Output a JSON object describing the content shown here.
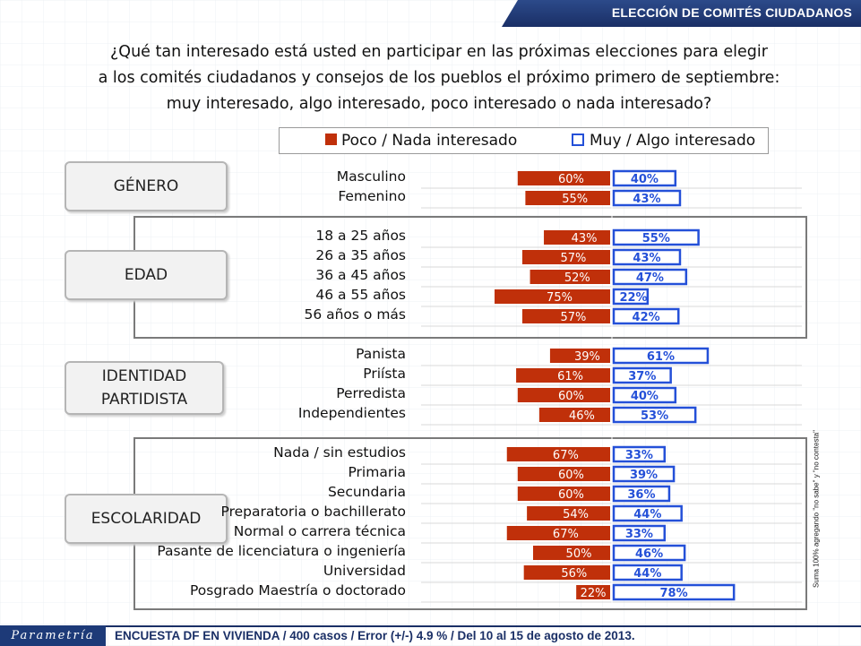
{
  "header": {
    "title": "ELECCIÓN DE COMITÉS CIUDADANOS"
  },
  "question": {
    "line1": "¿Qué tan interesado está usted en participar en las próximas elecciones para elegir",
    "line2": "a los comités ciudadanos y consejos de los pueblos el próximo primero de septiembre:",
    "line3": "muy interesado, algo interesado, poco interesado o nada interesado?"
  },
  "colors": {
    "negative": "#c0300a",
    "positive": "#2450d8",
    "header": "#1a2f66"
  },
  "chart_data": {
    "type": "bar",
    "orientation": "diverging-horizontal",
    "series": [
      {
        "name": "Poco / Nada interesado",
        "color": "#c0300a"
      },
      {
        "name": "Muy / Algo interesado",
        "color": "#2450d8"
      }
    ],
    "groups": [
      {
        "name": "GÉNERO",
        "rows": [
          {
            "label": "Masculino",
            "negative": 60,
            "positive": 40
          },
          {
            "label": "Femenino",
            "negative": 55,
            "positive": 43
          }
        ]
      },
      {
        "name": "EDAD",
        "rows": [
          {
            "label": "18 a 25 años",
            "negative": 43,
            "positive": 55
          },
          {
            "label": "26 a 35 años",
            "negative": 57,
            "positive": 43
          },
          {
            "label": "36 a 45 años",
            "negative": 52,
            "positive": 47
          },
          {
            "label": "46 a 55 años",
            "negative": 75,
            "positive": 22
          },
          {
            "label": "56 años o más",
            "negative": 57,
            "positive": 42
          }
        ]
      },
      {
        "name": "IDENTIDAD PARTIDISTA",
        "rows": [
          {
            "label": "Panista",
            "negative": 39,
            "positive": 61
          },
          {
            "label": "Priísta",
            "negative": 61,
            "positive": 37
          },
          {
            "label": "Perredista",
            "negative": 60,
            "positive": 40
          },
          {
            "label": "Independientes",
            "negative": 46,
            "positive": 53
          }
        ]
      },
      {
        "name": "ESCOLARIDAD",
        "rows": [
          {
            "label": "Nada / sin estudios",
            "negative": 67,
            "positive": 33
          },
          {
            "label": "Primaria",
            "negative": 60,
            "positive": 39
          },
          {
            "label": "Secundaria",
            "negative": 60,
            "positive": 36
          },
          {
            "label": "Preparatoria o bachillerato",
            "negative": 54,
            "positive": 44
          },
          {
            "label": "Normal o carrera técnica",
            "negative": 67,
            "positive": 33
          },
          {
            "label": "Pasante de licenciatura o ingeniería",
            "negative": 50,
            "positive": 46
          },
          {
            "label": "Universidad",
            "negative": 56,
            "positive": 44
          },
          {
            "label": "Posgrado Maestría o doctorado",
            "negative": 22,
            "positive": 78
          }
        ]
      }
    ]
  },
  "side_note": "Suma 100% agregando \"no sabe\" y \"no contesta\"",
  "footer": {
    "logo": "Parametría",
    "text": "ENCUESTA DF EN VIVIENDA / 400 casos / Error (+/-) 4.9 % / Del 10 al 15 de agosto de 2013."
  }
}
